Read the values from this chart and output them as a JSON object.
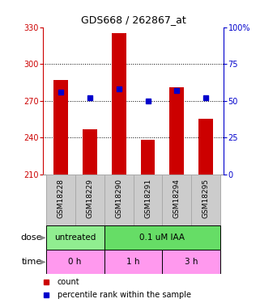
{
  "title": "GDS668 / 262867_at",
  "samples": [
    "GSM18228",
    "GSM18229",
    "GSM18290",
    "GSM18291",
    "GSM18294",
    "GSM18295"
  ],
  "count_values": [
    287,
    247,
    325,
    238,
    281,
    255
  ],
  "percentile_values": [
    56,
    52,
    58,
    50,
    57,
    52
  ],
  "ylim_left": [
    210,
    330
  ],
  "ylim_right": [
    0,
    100
  ],
  "yticks_left": [
    210,
    240,
    270,
    300,
    330
  ],
  "yticks_right": [
    0,
    25,
    50,
    75,
    100
  ],
  "ytick_labels_right": [
    "0",
    "25",
    "50",
    "75",
    "100%"
  ],
  "bar_color": "#cc0000",
  "marker_color": "#0000cc",
  "bar_width": 0.5,
  "grid_lines": [
    240,
    270,
    300
  ],
  "dose_ranges": [
    [
      -0.5,
      1.5,
      "#90ee90",
      "untreated"
    ],
    [
      1.5,
      5.5,
      "#66dd66",
      "0.1 uM IAA"
    ]
  ],
  "time_ranges": [
    [
      -0.5,
      1.5,
      "#ff99ee",
      "0 h"
    ],
    [
      1.5,
      3.5,
      "#ff99ee",
      "1 h"
    ],
    [
      3.5,
      5.5,
      "#ff99ee",
      "3 h"
    ]
  ],
  "label_color_left": "#cc0000",
  "label_color_right": "#0000cc",
  "legend_count_color": "#cc0000",
  "legend_pct_color": "#0000cc",
  "background_color": "#ffffff",
  "sample_box_color": "#cccccc",
  "sample_box_edge": "#aaaaaa"
}
